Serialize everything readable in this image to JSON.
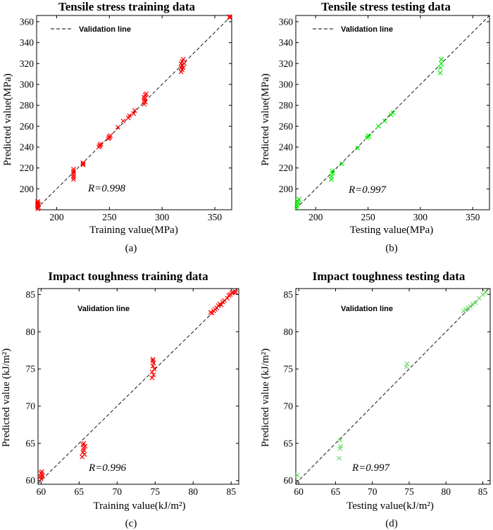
{
  "chart_data": [
    {
      "type": "scatter",
      "panel_label": "(a)",
      "title": "Tensile stress training data",
      "xlabel": "Training value(MPa)",
      "ylabel": "Predicted value(MPa)",
      "xlim": [
        181,
        366
      ],
      "ylim": [
        180,
        366
      ],
      "xticks": [
        200,
        250,
        300,
        350
      ],
      "yticks": [
        200,
        220,
        240,
        260,
        280,
        300,
        320,
        340,
        360
      ],
      "legend": "Validation line",
      "legend_position": "top-left",
      "annotation": "R=0.998",
      "color": "#ff0000",
      "x": [
        182,
        182,
        182,
        182,
        182,
        182,
        182,
        183,
        183,
        216,
        216,
        216,
        216,
        216,
        216,
        225,
        225,
        225,
        240,
        241,
        241,
        242,
        249,
        250,
        250,
        251,
        258,
        263,
        268,
        269,
        273,
        274,
        283,
        283,
        283,
        283,
        284,
        284,
        284,
        285,
        318,
        318,
        318,
        319,
        319,
        319,
        320,
        320,
        321,
        364,
        364
      ],
      "y": [
        181,
        183,
        184,
        185,
        186,
        187,
        188,
        182,
        185,
        209,
        211,
        213,
        215,
        217,
        219,
        223,
        224,
        225,
        240,
        242,
        241,
        243,
        248,
        250,
        249,
        251,
        259,
        265,
        268,
        270,
        272,
        275,
        281,
        284,
        286,
        288,
        283,
        287,
        290,
        291,
        312,
        316,
        320,
        314,
        318,
        322,
        316,
        324,
        320,
        364,
        365
      ]
    },
    {
      "type": "scatter",
      "panel_label": "(b)",
      "title": "Tensile stress testing data",
      "xlabel": "Testing value(MPa)",
      "ylabel": "Predicted value(MPa)",
      "xlim": [
        181,
        366
      ],
      "ylim": [
        180,
        366
      ],
      "xticks": [
        200,
        250,
        300,
        350
      ],
      "yticks": [
        200,
        220,
        240,
        260,
        280,
        300,
        320,
        340,
        360
      ],
      "legend": "Validation line",
      "legend_position": "top-left",
      "annotation": "R=0.997",
      "color": "#00ee00",
      "x": [
        182,
        182,
        183,
        183,
        184,
        215,
        215,
        216,
        216,
        225,
        240,
        249,
        250,
        251,
        260,
        266,
        272,
        274,
        319,
        319,
        320,
        320
      ],
      "y": [
        182,
        184,
        186,
        188,
        190,
        209,
        212,
        215,
        217,
        224,
        239,
        249,
        251,
        250,
        260,
        265,
        271,
        273,
        311,
        316,
        320,
        324
      ],
      "series_colors": null
    },
    {
      "type": "scatter",
      "panel_label": "(c)",
      "title": "Impact toughness training data",
      "xlabel": "Training value(kJ/m²)",
      "ylabel": "Predicted value (kJ/m²)",
      "xlim": [
        59.6,
        86
      ],
      "ylim": [
        59.5,
        85.8
      ],
      "xticks": [
        60,
        65,
        70,
        75,
        80,
        85
      ],
      "yticks": [
        60,
        65,
        70,
        75,
        80,
        85
      ],
      "legend": "Validation line",
      "legend_position": "top-left",
      "annotation": "R=0.996",
      "color": "#ff0000",
      "x": [
        59.9,
        60,
        60,
        60.1,
        60.1,
        60.2,
        65.4,
        65.5,
        65.6,
        65.6,
        65.7,
        65.8,
        65.5,
        65.6,
        74.6,
        74.6,
        74.7,
        74.7,
        74.8,
        74.8,
        74.9,
        74.7,
        82.3,
        82.5,
        82.7,
        82.9,
        83.1,
        83.3,
        83.5,
        83.7,
        83.9,
        84.1,
        84.5,
        84.7,
        84.9,
        85.1,
        85.3,
        85.5,
        85.6
      ],
      "y": [
        60.5,
        61,
        60.2,
        60.8,
        61.2,
        60.6,
        63.2,
        63.8,
        64.4,
        65,
        63.5,
        64.6,
        64.8,
        64.1,
        73.8,
        74.6,
        75.4,
        76.1,
        74.2,
        75.8,
        75,
        76.3,
        82.6,
        82.5,
        82.8,
        83,
        83.2,
        83.5,
        83.7,
        83.6,
        84,
        84.2,
        84.5,
        84.9,
        85,
        85.2,
        85.3,
        85.4,
        85.3
      ]
    },
    {
      "type": "scatter",
      "panel_label": "(d)",
      "title": "Impact toughness testing data",
      "xlabel": "Testing value(kJ/m²)",
      "ylabel": "Predicted value (kJ/m²)",
      "xlim": [
        59.6,
        86
      ],
      "ylim": [
        59.5,
        85.8
      ],
      "xticks": [
        60,
        65,
        70,
        75,
        80,
        85
      ],
      "yticks": [
        60,
        65,
        70,
        75,
        80,
        85
      ],
      "legend": "Validation line",
      "legend_position": "top-left",
      "annotation": "R=0.997",
      "color": "#6fde6f",
      "x": [
        59.8,
        65.5,
        65.6,
        65.7,
        65.6,
        74.6,
        74.7,
        82.4,
        82.7,
        83,
        83.3,
        83.6,
        84,
        84.5,
        85,
        85.4
      ],
      "y": [
        60.7,
        63,
        64.3,
        64.6,
        65.4,
        75.3,
        75.7,
        82.8,
        83,
        83.2,
        83.4,
        83.7,
        83.9,
        84.5,
        85,
        85.3
      ]
    }
  ]
}
